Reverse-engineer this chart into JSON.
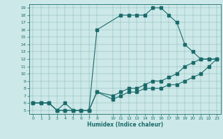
{
  "xlabel": "Humidex (Indice chaleur)",
  "bg_color": "#cde8e8",
  "line_color": "#1a6b6b",
  "xlim": [
    -0.5,
    23.5
  ],
  "ylim": [
    4.5,
    19.5
  ],
  "xticks": [
    0,
    1,
    2,
    3,
    4,
    5,
    6,
    7,
    8,
    10,
    11,
    12,
    13,
    14,
    15,
    16,
    17,
    18,
    19,
    20,
    21,
    22,
    23
  ],
  "yticks": [
    5,
    6,
    7,
    8,
    9,
    10,
    11,
    12,
    13,
    14,
    15,
    16,
    17,
    18,
    19
  ],
  "line1_x": [
    0,
    1,
    2,
    3,
    4,
    5,
    6,
    7,
    8,
    11,
    12,
    13,
    14,
    15,
    16,
    17,
    18,
    19,
    20,
    21,
    22,
    23
  ],
  "line1_y": [
    6,
    6,
    6,
    5,
    6,
    5,
    5,
    5,
    16,
    18,
    18,
    18,
    18,
    19,
    19,
    18,
    17,
    14,
    13,
    12,
    12,
    12
  ],
  "line2_x": [
    0,
    1,
    2,
    3,
    4,
    5,
    6,
    7,
    8,
    10,
    11,
    12,
    13,
    14,
    15,
    16,
    17,
    18,
    19,
    20,
    21,
    22,
    23
  ],
  "line2_y": [
    6,
    6,
    6,
    5,
    5,
    5,
    5,
    5,
    7.5,
    7,
    7.5,
    8,
    8,
    8.5,
    9,
    9,
    9.5,
    10,
    11,
    11.5,
    12,
    12,
    12
  ],
  "line3_x": [
    0,
    1,
    2,
    3,
    4,
    5,
    6,
    7,
    8,
    10,
    11,
    12,
    13,
    14,
    15,
    16,
    17,
    18,
    19,
    20,
    21,
    22,
    23
  ],
  "line3_y": [
    6,
    6,
    6,
    5,
    5,
    5,
    5,
    5,
    7.5,
    6.5,
    7,
    7.5,
    7.5,
    8,
    8,
    8,
    8.5,
    8.5,
    9,
    9.5,
    10,
    11,
    12
  ]
}
